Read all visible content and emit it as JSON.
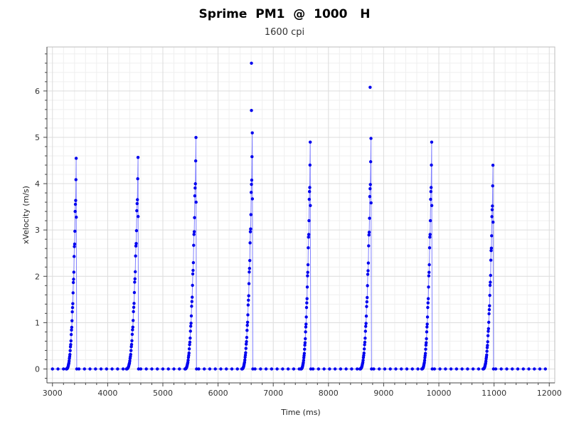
{
  "chart_data": {
    "type": "line",
    "title": "Sprime  PM1  @  1000   H",
    "subtitle": "1600 cpi",
    "xlabel": "Time (ms)",
    "ylabel": "xVelocity (m/s)",
    "xlim": [
      2900,
      12100
    ],
    "ylim": [
      -0.3,
      6.95
    ],
    "xticks": [
      3000,
      4000,
      5000,
      6000,
      7000,
      8000,
      9000,
      10000,
      11000,
      12000
    ],
    "yticks": [
      0,
      1,
      2,
      3,
      4,
      5,
      6
    ],
    "grid": true,
    "series_color": "#0000ee",
    "line_color": "#8080ff",
    "bursts": [
      {
        "start": 3250,
        "end": 3440,
        "peak": 4.55
      },
      {
        "start": 4340,
        "end": 4560,
        "peak": 4.57
      },
      {
        "start": 5400,
        "end": 5610,
        "peak": 5.0
      },
      {
        "start": 6430,
        "end": 6630,
        "peak": 5.1,
        "outliers": [
          5.58,
          6.6
        ]
      },
      {
        "start": 7500,
        "end": 7680,
        "peak": 4.9
      },
      {
        "start": 8570,
        "end": 8780,
        "peak": 4.98,
        "outliers": [
          6.08
        ]
      },
      {
        "start": 9690,
        "end": 9880,
        "peak": 4.9
      },
      {
        "start": 10800,
        "end": 10990,
        "peak": 4.4
      }
    ]
  }
}
